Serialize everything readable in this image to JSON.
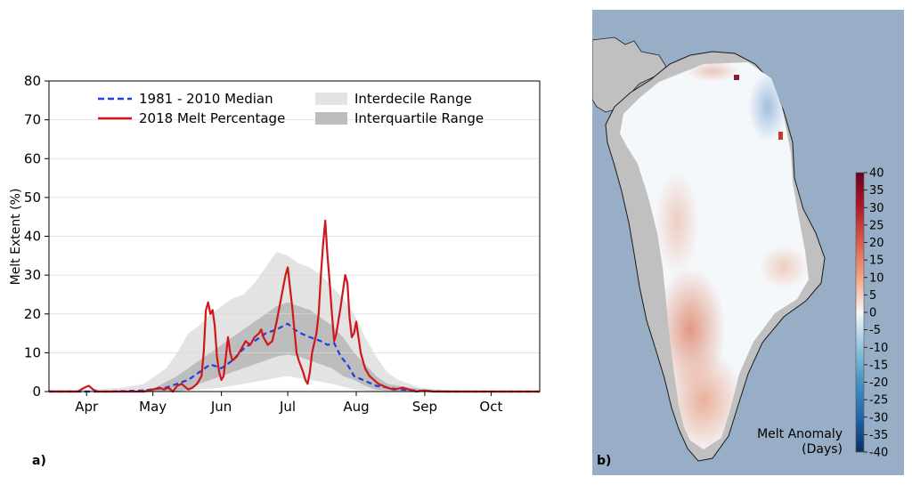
{
  "panel_a": {
    "label": "a)",
    "ylabel": "Melt Extent (%)",
    "legend": {
      "median": "1981 - 2010 Median",
      "melt2018": "2018 Melt Percentage",
      "interdecile": "Interdecile Range",
      "interquartile": "Interquartile Range"
    }
  },
  "panel_b": {
    "label": "b)",
    "colorbar_title_line1": "Melt Anomaly",
    "colorbar_title_line2": "(Days)",
    "colorbar_ticks": [
      "40",
      "35",
      "30",
      "25",
      "20",
      "15",
      "10",
      "5",
      "0",
      "-5",
      "-10",
      "-15",
      "-20",
      "-25",
      "-30",
      "-35",
      "-40"
    ],
    "colors": {
      "ocean": "#98aec6",
      "land": "#c0c0c0",
      "neutral": "#f5f8fb",
      "positive": "#d9826a",
      "negative": "#6a8fc4"
    }
  },
  "chart_data": [
    {
      "type": "line",
      "ylabel": "Melt Extent (%)",
      "ylim": [
        0,
        80
      ],
      "yticks": [
        0,
        10,
        20,
        30,
        40,
        50,
        60,
        70,
        80
      ],
      "month_ticks": [
        {
          "label": "Apr",
          "day": 99
        },
        {
          "label": "May",
          "day": 129
        },
        {
          "label": "Jun",
          "day": 160
        },
        {
          "label": "Jul",
          "day": 190
        },
        {
          "label": "Aug",
          "day": 221
        },
        {
          "label": "Sep",
          "day": 252
        },
        {
          "label": "Oct",
          "day": 282
        }
      ],
      "xlim": [
        82,
        304
      ],
      "grid": true,
      "legend_placement": "top",
      "colors": {
        "median": "#1f3fe0",
        "melt2018": "#d0161b",
        "interdecile": "#e3e3e3",
        "interquartile": "#bdbdbd"
      },
      "series": [
        {
          "name": "1981 - 2010 Median",
          "style": "dashed",
          "points": [
            [
              82,
              0
            ],
            [
              110,
              0
            ],
            [
              125,
              0.3
            ],
            [
              135,
              1
            ],
            [
              145,
              3
            ],
            [
              150,
              5
            ],
            [
              155,
              7
            ],
            [
              160,
              6
            ],
            [
              165,
              8
            ],
            [
              170,
              11
            ],
            [
              175,
              13
            ],
            [
              180,
              15
            ],
            [
              185,
              16
            ],
            [
              190,
              17.5
            ],
            [
              193,
              16
            ],
            [
              196,
              15
            ],
            [
              200,
              14
            ],
            [
              205,
              13
            ],
            [
              208,
              12
            ],
            [
              211,
              12.5
            ],
            [
              214,
              9
            ],
            [
              217,
              7
            ],
            [
              220,
              4
            ],
            [
              224,
              3
            ],
            [
              230,
              1.5
            ],
            [
              240,
              0.6
            ],
            [
              250,
              0.2
            ],
            [
              260,
              0
            ],
            [
              304,
              0
            ]
          ]
        },
        {
          "name": "2018 Melt Percentage",
          "style": "solid",
          "points": [
            [
              82,
              0
            ],
            [
              95,
              0
            ],
            [
              98,
              1
            ],
            [
              100,
              1.5
            ],
            [
              102,
              0.5
            ],
            [
              104,
              0
            ],
            [
              125,
              0
            ],
            [
              129,
              0.5
            ],
            [
              132,
              1
            ],
            [
              134,
              0.5
            ],
            [
              136,
              1
            ],
            [
              138,
              0
            ],
            [
              140,
              1.5
            ],
            [
              142,
              2
            ],
            [
              144,
              1
            ],
            [
              145,
              0.5
            ],
            [
              147,
              1
            ],
            [
              149,
              2
            ],
            [
              151,
              4
            ],
            [
              152,
              10
            ],
            [
              153,
              21
            ],
            [
              154,
              23
            ],
            [
              155,
              20
            ],
            [
              156,
              21
            ],
            [
              157,
              17
            ],
            [
              158,
              9
            ],
            [
              159,
              5
            ],
            [
              160,
              3
            ],
            [
              161,
              4
            ],
            [
              162,
              9
            ],
            [
              163,
              14
            ],
            [
              164,
              10
            ],
            [
              165,
              8
            ],
            [
              167,
              9
            ],
            [
              169,
              11
            ],
            [
              171,
              13
            ],
            [
              173,
              12
            ],
            [
              175,
              14
            ],
            [
              177,
              15
            ],
            [
              178,
              16
            ],
            [
              179,
              14
            ],
            [
              181,
              12
            ],
            [
              183,
              13
            ],
            [
              185,
              18
            ],
            [
              187,
              24
            ],
            [
              189,
              30
            ],
            [
              190,
              32
            ],
            [
              191,
              27
            ],
            [
              192,
              22
            ],
            [
              193,
              16
            ],
            [
              194,
              10
            ],
            [
              195,
              8
            ],
            [
              197,
              5
            ],
            [
              198,
              3
            ],
            [
              199,
              2
            ],
            [
              200,
              5
            ],
            [
              201,
              10
            ],
            [
              203,
              15
            ],
            [
              204,
              20
            ],
            [
              205,
              30
            ],
            [
              206,
              38
            ],
            [
              207,
              44
            ],
            [
              208,
              35
            ],
            [
              209,
              28
            ],
            [
              210,
              20
            ],
            [
              211,
              13
            ],
            [
              212,
              15
            ],
            [
              214,
              22
            ],
            [
              216,
              30
            ],
            [
              217,
              28
            ],
            [
              218,
              19
            ],
            [
              219,
              14
            ],
            [
              220,
              15
            ],
            [
              221,
              18
            ],
            [
              222,
              14
            ],
            [
              223,
              10
            ],
            [
              225,
              6
            ],
            [
              227,
              4
            ],
            [
              229,
              3
            ],
            [
              231,
              2
            ],
            [
              233,
              1.5
            ],
            [
              235,
              1
            ],
            [
              238,
              0.5
            ],
            [
              242,
              1
            ],
            [
              245,
              0.5
            ],
            [
              248,
              0
            ],
            [
              252,
              0.3
            ],
            [
              256,
              0
            ],
            [
              304,
              0
            ]
          ]
        }
      ],
      "bands": [
        {
          "name": "Interdecile Range",
          "upper": [
            [
              82,
              0.5
            ],
            [
              100,
              0.5
            ],
            [
              115,
              1
            ],
            [
              125,
              2
            ],
            [
              130,
              4
            ],
            [
              135,
              6
            ],
            [
              140,
              10
            ],
            [
              145,
              15
            ],
            [
              150,
              17
            ],
            [
              155,
              20
            ],
            [
              160,
              22
            ],
            [
              165,
              24
            ],
            [
              170,
              25
            ],
            [
              175,
              28
            ],
            [
              180,
              32
            ],
            [
              185,
              36
            ],
            [
              190,
              35
            ],
            [
              195,
              33
            ],
            [
              200,
              32
            ],
            [
              205,
              30
            ],
            [
              210,
              27
            ],
            [
              215,
              24
            ],
            [
              220,
              20
            ],
            [
              225,
              14
            ],
            [
              230,
              9
            ],
            [
              235,
              5
            ],
            [
              240,
              3
            ],
            [
              245,
              2
            ],
            [
              250,
              1
            ],
            [
              260,
              0.5
            ],
            [
              275,
              0.2
            ],
            [
              304,
              0
            ]
          ],
          "lower": [
            [
              82,
              0
            ],
            [
              140,
              0
            ],
            [
              150,
              0.5
            ],
            [
              160,
              1
            ],
            [
              170,
              2
            ],
            [
              180,
              3
            ],
            [
              190,
              4
            ],
            [
              200,
              3
            ],
            [
              210,
              2
            ],
            [
              220,
              0.5
            ],
            [
              230,
              0
            ],
            [
              304,
              0
            ]
          ]
        },
        {
          "name": "Interquartile Range",
          "upper": [
            [
              82,
              0
            ],
            [
              120,
              0
            ],
            [
              130,
              1
            ],
            [
              140,
              4
            ],
            [
              145,
              6
            ],
            [
              150,
              8
            ],
            [
              155,
              10
            ],
            [
              160,
              12
            ],
            [
              165,
              14
            ],
            [
              170,
              16
            ],
            [
              175,
              18
            ],
            [
              180,
              20
            ],
            [
              185,
              22
            ],
            [
              190,
              23
            ],
            [
              195,
              22
            ],
            [
              200,
              21
            ],
            [
              205,
              19
            ],
            [
              210,
              17
            ],
            [
              215,
              14
            ],
            [
              220,
              10
            ],
            [
              225,
              7
            ],
            [
              230,
              4
            ],
            [
              235,
              2
            ],
            [
              245,
              1
            ],
            [
              255,
              0.3
            ],
            [
              304,
              0
            ]
          ],
          "lower": [
            [
              82,
              0
            ],
            [
              140,
              0
            ],
            [
              145,
              0.5
            ],
            [
              150,
              2
            ],
            [
              155,
              3
            ],
            [
              160,
              4
            ],
            [
              165,
              5
            ],
            [
              170,
              6
            ],
            [
              175,
              7
            ],
            [
              180,
              8
            ],
            [
              185,
              9
            ],
            [
              190,
              9.5
            ],
            [
              195,
              9
            ],
            [
              200,
              8
            ],
            [
              205,
              7
            ],
            [
              210,
              6
            ],
            [
              215,
              4
            ],
            [
              220,
              3
            ],
            [
              225,
              1.5
            ],
            [
              230,
              0.5
            ],
            [
              240,
              0
            ],
            [
              304,
              0
            ]
          ]
        }
      ]
    },
    {
      "type": "heatmap",
      "colorbar_title": "Melt Anomaly (Days)",
      "range": [
        -40,
        40
      ],
      "colorbar_ticks": [
        40,
        35,
        30,
        25,
        20,
        15,
        10,
        5,
        0,
        -5,
        -10,
        -15,
        -20,
        -25,
        -30,
        -35,
        -40
      ]
    }
  ]
}
